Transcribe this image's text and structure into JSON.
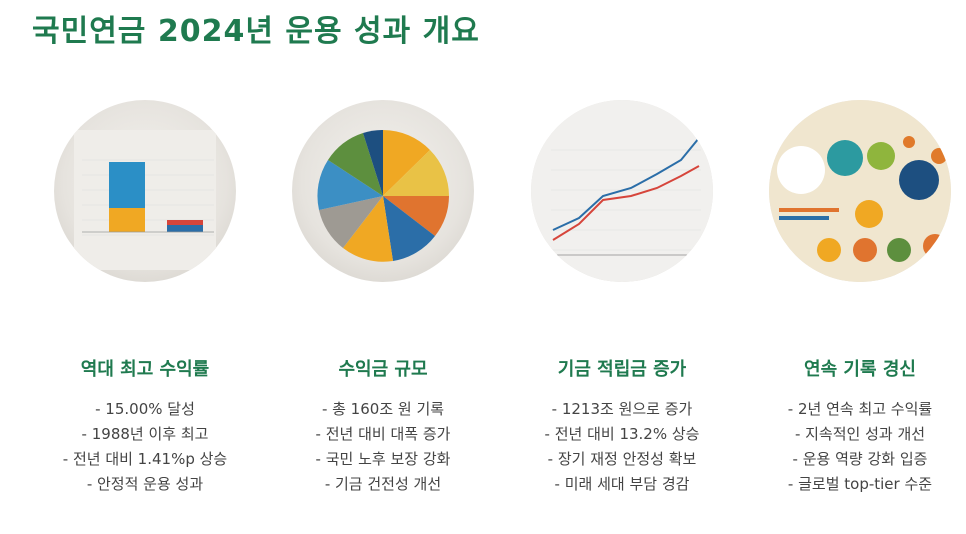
{
  "page": {
    "title": "국민연금 2024년 운용 성과 개요"
  },
  "cards": [
    {
      "title": "역대 최고 수익률",
      "image_icon": "bar-chart-icon",
      "bullets": [
        "- 15.00% 달성",
        "- 1988년 이후 최고",
        "- 전년 대비 1.41%p 상승",
        "- 안정적 운용 성과"
      ]
    },
    {
      "title": "수익금 규모",
      "image_icon": "pie-chart-icon",
      "bullets": [
        "- 총 160조 원 기록",
        "- 전년 대비 대폭 증가",
        "- 국민 노후 보장 강화",
        "- 기금 건전성 개선"
      ]
    },
    {
      "title": "기금 적립금 증가",
      "image_icon": "line-chart-icon",
      "bullets": [
        "- 1213조 원으로 증가",
        "- 전년 대비 13.2% 상승",
        "- 장기 재정 안정성 확보",
        "- 미래 세대 부담 경감"
      ]
    },
    {
      "title": "연속 기록 경신",
      "image_icon": "infographic-icon",
      "bullets": [
        "- 2년 연속 최고 수익률",
        "- 지속적인 성과 개선",
        "- 운용 역량 강화 입증",
        "- 글로벌 top-tier 수준"
      ]
    }
  ],
  "colors": {
    "accent": "#1f7a4f",
    "text": "#444444"
  }
}
